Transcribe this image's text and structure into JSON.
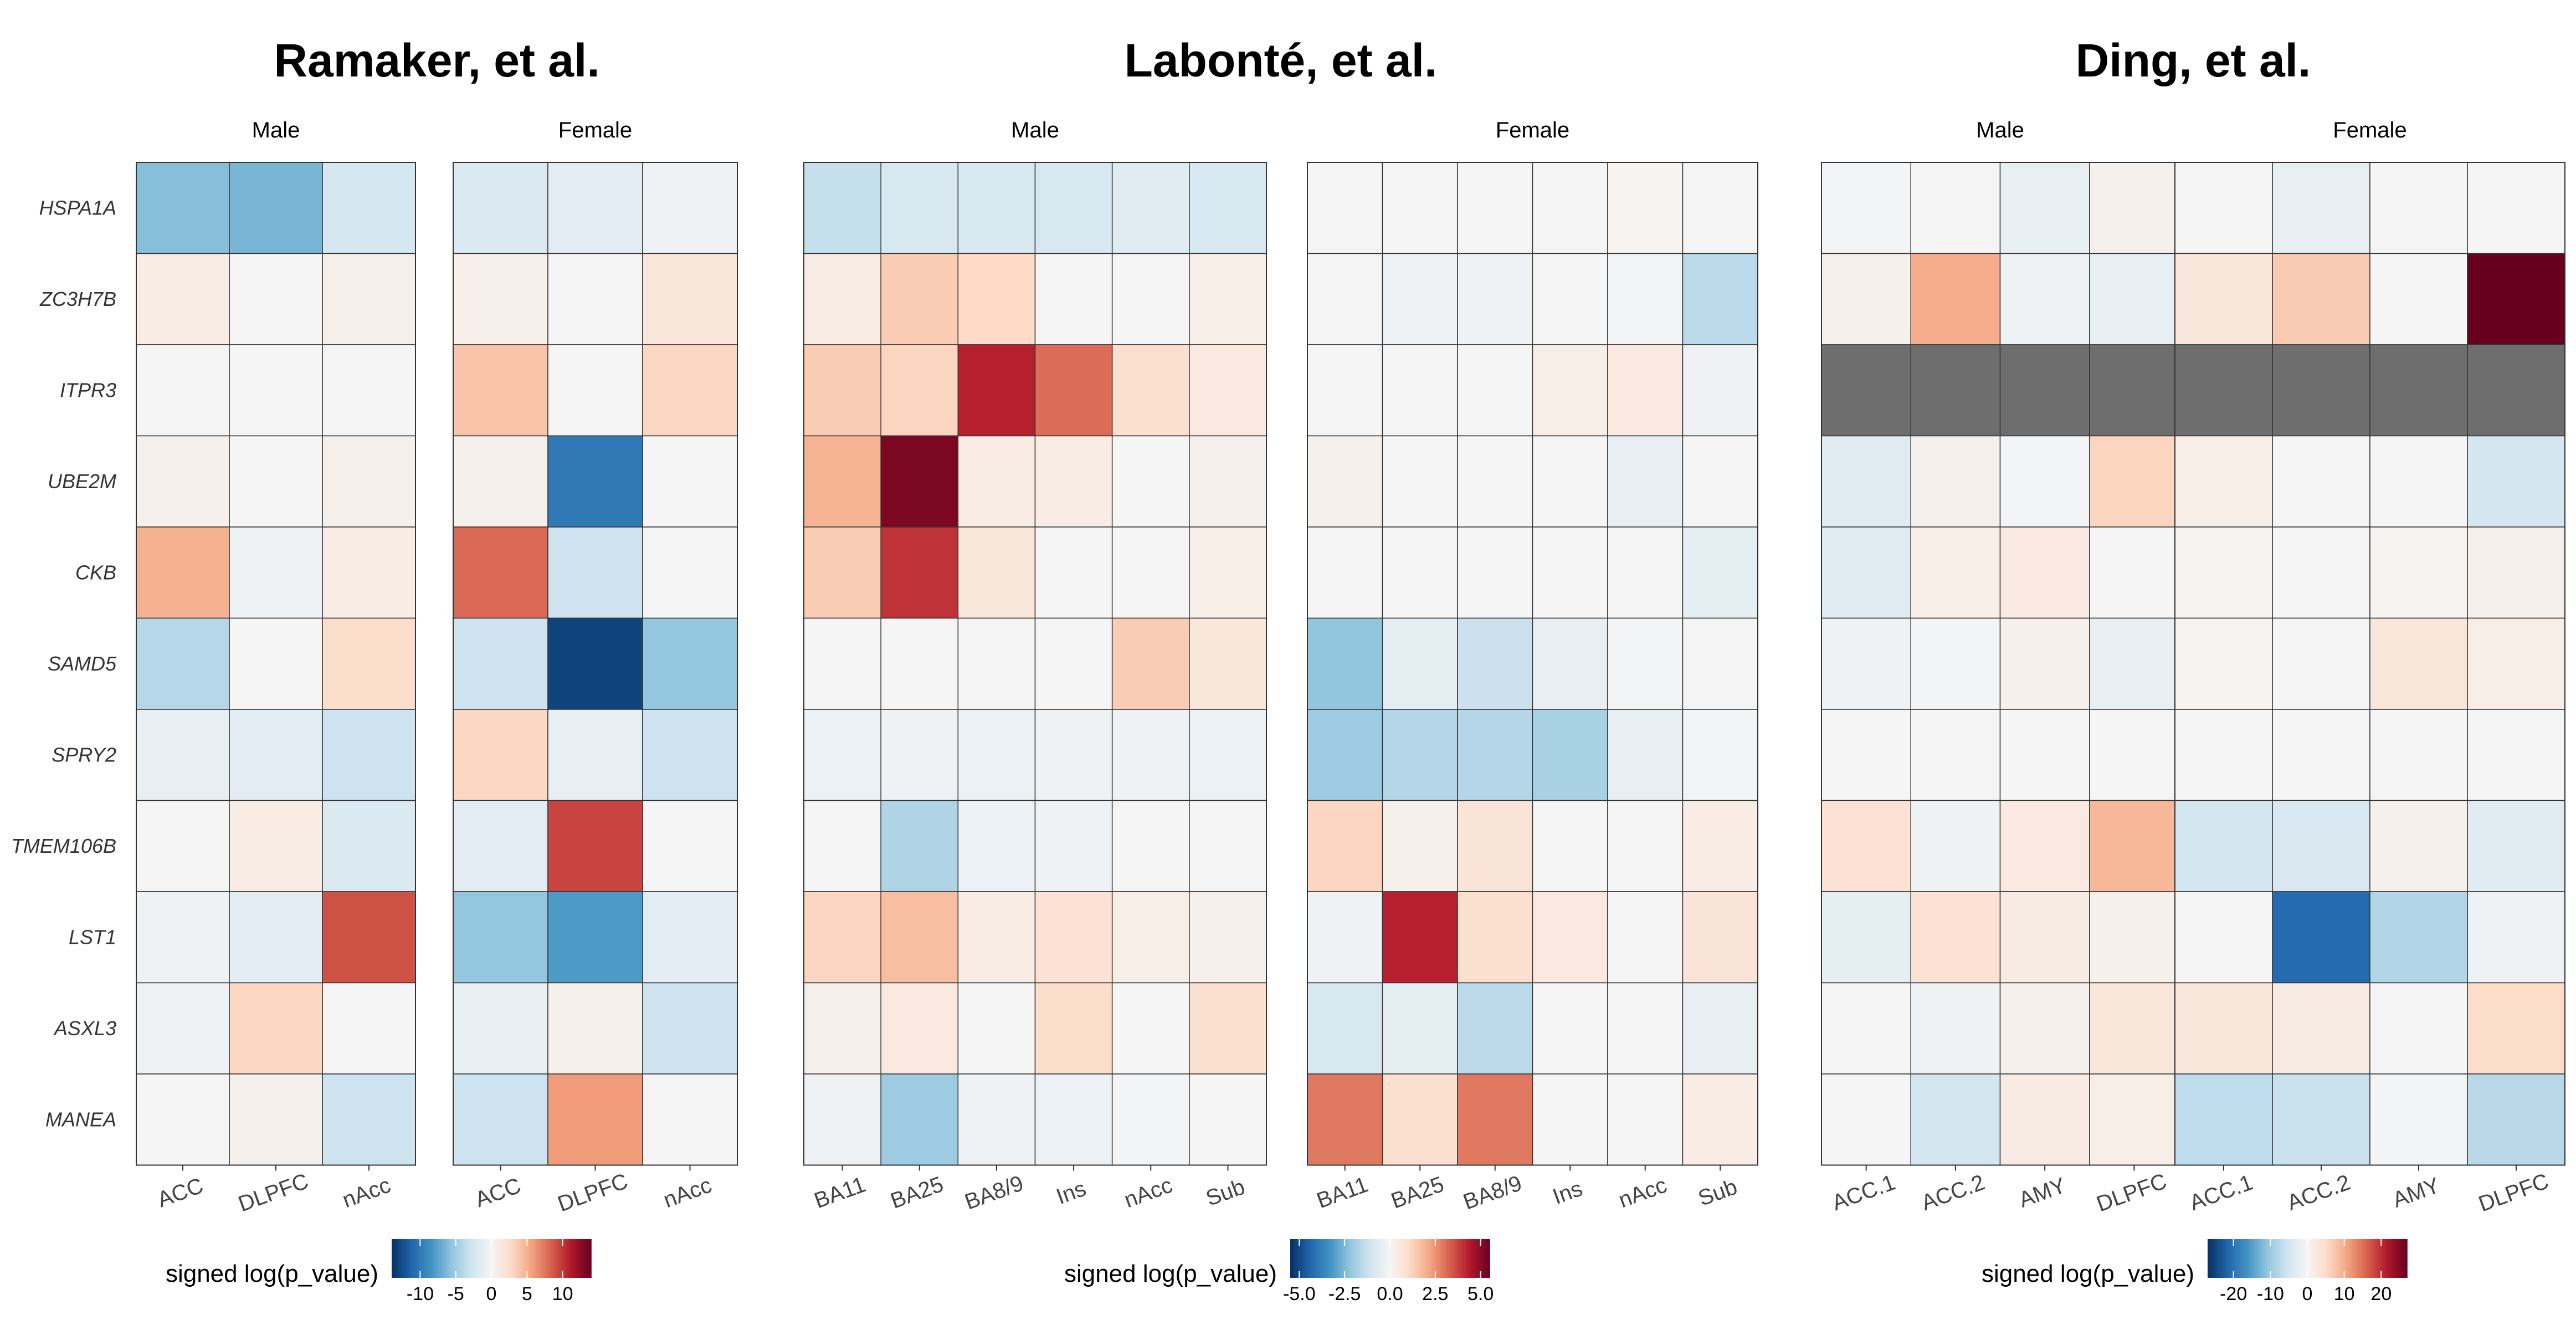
{
  "chart_data": {
    "type": "heatmap",
    "genes": [
      "HSPA1A",
      "ZC3H7B",
      "ITPR3",
      "UBE2M",
      "CKB",
      "SAMD5",
      "SPRY2",
      "TMEM106B",
      "LST1",
      "ASXL3",
      "MANEA"
    ],
    "colors": {
      "scale": [
        "#053061",
        "#2166ac",
        "#4393c3",
        "#92c5de",
        "#d1e5f0",
        "#f5f5f5",
        "#fddbc7",
        "#f4a582",
        "#d6604d",
        "#b2182b",
        "#67001f"
      ],
      "missing": "#6e6e6e",
      "grid": "#333333"
    },
    "studies": [
      {
        "title": "Ramaker, et al.",
        "legend": {
          "title": "signed log(p_value)",
          "min": -14,
          "max": 14,
          "ticks": [
            -10,
            -5,
            0,
            5,
            10
          ],
          "tick_labels": [
            "-10",
            "-5",
            "0",
            "5",
            "10"
          ]
        },
        "panels": [
          {
            "title": "Male",
            "columns": [
              "ACC",
              "DLPFC",
              "nAcc"
            ],
            "values": [
              [
                -6,
                -6.5,
                -2.5
              ],
              [
                1,
                0,
                0.5
              ],
              [
                0,
                0,
                0
              ],
              [
                0.5,
                0,
                0.5
              ],
              [
                5,
                -0.5,
                1
              ],
              [
                -4,
                0,
                2.5
              ],
              [
                -1,
                -1.5,
                -3
              ],
              [
                0,
                1,
                -2
              ],
              [
                -0.5,
                -1.5,
                9
              ],
              [
                -0.5,
                3,
                0
              ],
              [
                0,
                0.5,
                -3
              ]
            ]
          },
          {
            "title": "Female",
            "columns": [
              "ACC",
              "DLPFC",
              "nAcc"
            ],
            "values": [
              [
                -2,
                -1.5,
                -0.5
              ],
              [
                0.7,
                0,
                1.5
              ],
              [
                4,
                0,
                3
              ],
              [
                0.5,
                -10,
                0
              ],
              [
                8,
                -3,
                0
              ],
              [
                -3,
                -13,
                -5.5
              ],
              [
                3,
                -1,
                -3
              ],
              [
                -1.5,
                9.5,
                0
              ],
              [
                -5.5,
                -8,
                -1.5
              ],
              [
                -1,
                0.5,
                -3
              ],
              [
                -3,
                6,
                0
              ]
            ]
          }
        ]
      },
      {
        "title": "Labonté, et al.",
        "legend": {
          "title": "signed log(p_value)",
          "min": -5.5,
          "max": 5.5,
          "ticks": [
            -5,
            -2.5,
            0,
            2.5,
            5
          ],
          "tick_labels": [
            "-5.0",
            "-2.5",
            "0.0",
            "2.5",
            "5.0"
          ]
        },
        "panels": [
          {
            "title": "Male",
            "columns": [
              "BA11",
              "BA25",
              "BA8/9",
              "Ins",
              "nAcc",
              "Sub"
            ],
            "values": [
              [
                -1.3,
                -0.9,
                -0.9,
                -0.9,
                -0.6,
                -0.9
              ],
              [
                0.4,
                1.4,
                1.1,
                0,
                0,
                0.3
              ],
              [
                1.4,
                1.2,
                4.3,
                3.1,
                0.9,
                0.5
              ],
              [
                1.9,
                5.2,
                0.4,
                0.4,
                0,
                0.2
              ],
              [
                1.4,
                4,
                0.6,
                0,
                0,
                0.3
              ],
              [
                0,
                0,
                0,
                0,
                1.4,
                0.6
              ],
              [
                -0.3,
                -0.2,
                -0.3,
                -0.2,
                -0.2,
                -0.3
              ],
              [
                0,
                -1.7,
                -0.3,
                -0.2,
                0,
                0
              ],
              [
                1.2,
                1.7,
                0.4,
                0.8,
                0.3,
                0.2
              ],
              [
                0.2,
                0.5,
                0,
                1,
                0,
                0.9
              ],
              [
                -0.2,
                -2,
                -0.2,
                -0.3,
                -0.1,
                0
              ]
            ]
          },
          {
            "title": "Female",
            "columns": [
              "BA11",
              "BA25",
              "BA8/9",
              "Ins",
              "nAcc",
              "Sub"
            ],
            "values": [
              [
                0,
                0,
                0,
                0,
                0.1,
                0
              ],
              [
                0,
                -0.2,
                -0.2,
                0,
                -0.1,
                -1.5
              ],
              [
                0,
                0,
                0,
                0.3,
                0.5,
                -0.2
              ],
              [
                0.2,
                0,
                0,
                0,
                -0.4,
                0
              ],
              [
                0,
                0,
                0,
                0,
                0,
                -0.5
              ],
              [
                -2.2,
                -0.5,
                -1.2,
                -0.4,
                -0.1,
                0
              ],
              [
                -2,
                -1.6,
                -1.6,
                -1.8,
                -0.4,
                -0.1
              ],
              [
                1.2,
                0.2,
                0.7,
                0,
                0,
                0.4
              ],
              [
                -0.2,
                4.3,
                0.9,
                0.5,
                0,
                0.7
              ],
              [
                -0.9,
                -0.5,
                -1.5,
                0,
                0,
                -0.4
              ],
              [
                2.9,
                0.9,
                2.9,
                0,
                0,
                0.4
              ]
            ]
          }
        ]
      },
      {
        "title": "Ding, et al.",
        "legend": {
          "title": "signed log(p_value)",
          "min": -27,
          "max": 27,
          "ticks": [
            -20,
            -10,
            0,
            10,
            20
          ],
          "tick_labels": [
            "-20",
            "-10",
            "0",
            "10",
            "20"
          ]
        },
        "panels": [
          {
            "title": "Male",
            "columns": [
              "ACC.1",
              "ACC.2",
              "AMY",
              "DLPFC"
            ],
            "values": [
              [
                -0.5,
                0,
                -2,
                1
              ],
              [
                1,
                10,
                -1,
                -2
              ],
              [
                null,
                null,
                null,
                null
              ],
              [
                -3,
                1,
                -0.5,
                6
              ],
              [
                -3,
                1.5,
                2.5,
                0
              ],
              [
                -1,
                -0.5,
                1,
                -2
              ],
              [
                0,
                0,
                0,
                0
              ],
              [
                4,
                -1,
                2.5,
                9
              ],
              [
                -2.5,
                4,
                2,
                1
              ],
              [
                0,
                -1,
                1,
                3
              ],
              [
                0,
                -5,
                2,
                1.5
              ]
            ]
          },
          {
            "title": "Female",
            "columns": [
              "ACC.1",
              "ACC.2",
              "AMY",
              "DLPFC"
            ],
            "values": [
              [
                0,
                -2,
                0,
                0
              ],
              [
                3,
                7,
                0,
                27
              ],
              [
                null,
                null,
                null,
                null
              ],
              [
                1.5,
                0,
                0,
                -5
              ],
              [
                0.5,
                0,
                0.5,
                1
              ],
              [
                0.5,
                0,
                3,
                1.5
              ],
              [
                0,
                0,
                0,
                0
              ],
              [
                -5,
                -4,
                1,
                -3
              ],
              [
                0,
                -21,
                -8,
                -1
              ],
              [
                3,
                2,
                0,
                5
              ],
              [
                -7,
                -6,
                -0.5,
                -7.5
              ]
            ]
          }
        ]
      }
    ]
  }
}
